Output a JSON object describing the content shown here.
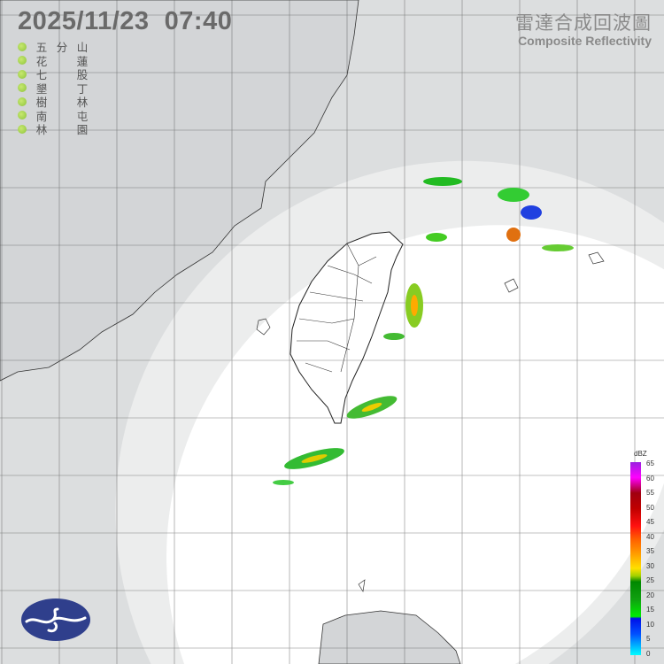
{
  "header": {
    "datetime": "2025/11/23  07:40"
  },
  "stations": [
    {
      "name": [
        "五",
        "分",
        "山"
      ]
    },
    {
      "name": [
        "花",
        "",
        "蓮"
      ]
    },
    {
      "name": [
        "七",
        "",
        "股"
      ]
    },
    {
      "name": [
        "墾",
        "",
        "丁"
      ]
    },
    {
      "name": [
        "樹",
        "",
        "林"
      ]
    },
    {
      "name": [
        "南",
        "",
        "屯"
      ]
    },
    {
      "name": [
        "林",
        "",
        "園"
      ]
    }
  ],
  "product": {
    "title_zh": "雷達合成回波圖",
    "title_en": "Composite Reflectivity"
  },
  "legend": {
    "unit": "dBZ",
    "ticks": [
      "65",
      "60",
      "55",
      "50",
      "45",
      "40",
      "35",
      "30",
      "25",
      "20",
      "15",
      "10",
      "5",
      "0"
    ],
    "colors": {
      "station_dot": "#8cc43a",
      "logo": "#2f3f8c",
      "land": "#d0d2d4",
      "radar_coverage": "#ffffff"
    }
  },
  "logo": {
    "icon": "cwa-logo"
  }
}
